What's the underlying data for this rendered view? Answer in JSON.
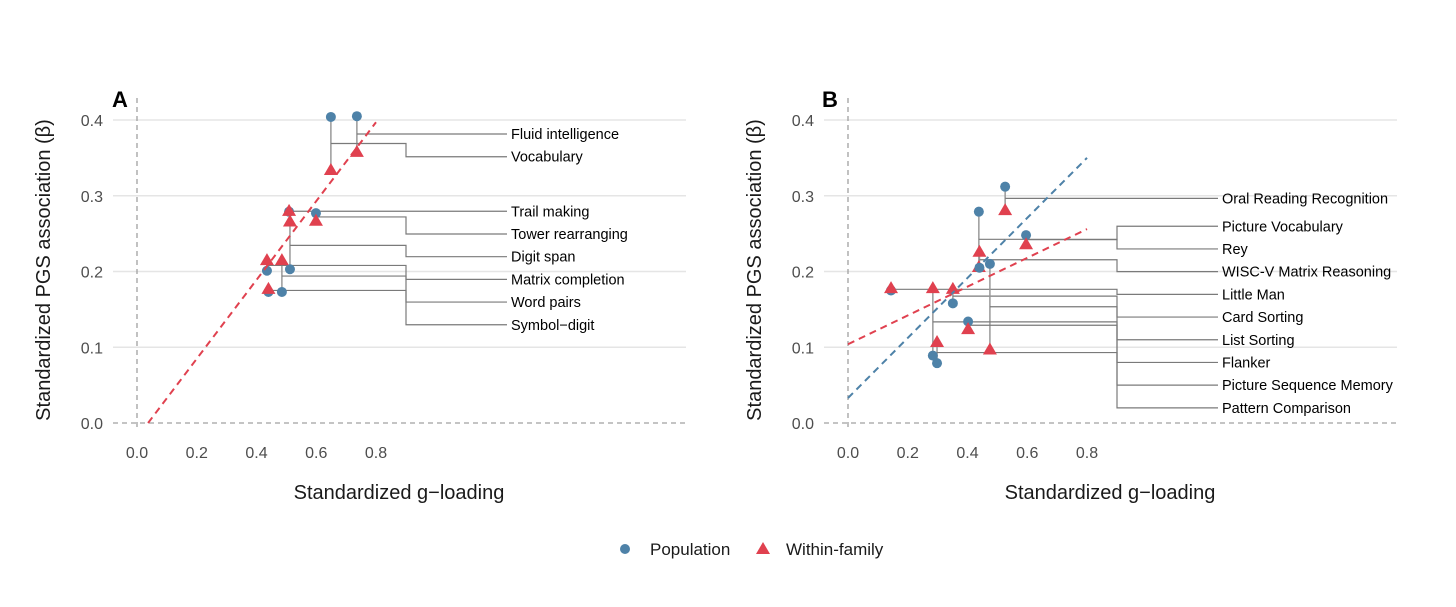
{
  "colors": {
    "population": "#4e82a8",
    "within_family": "#e0414f",
    "grid": "#e5e5e5",
    "connector": "#7a7a7a",
    "zero": "#a0a0a0"
  },
  "legend": {
    "items": [
      {
        "label": "Population",
        "shape": "circle"
      },
      {
        "label": "Within-family",
        "shape": "triangle"
      }
    ],
    "placement": "bottom"
  },
  "chart_data": [
    {
      "type": "scatter",
      "tag": "A",
      "xlabel": "Standardized g−loading",
      "ylabel": "Standardized PGS association (β)",
      "xticks": [
        0.0,
        0.2,
        0.4,
        0.6,
        0.8
      ],
      "xtick_labels": [
        "0.0",
        "0.2",
        "0.4",
        "0.6",
        "0.8"
      ],
      "yticks": [
        0.0,
        0.1,
        0.2,
        0.3,
        0.4
      ],
      "ytick_labels": [
        "0.0",
        "0.1",
        "0.2",
        "0.3",
        "0.4"
      ],
      "grid": "horizontal",
      "points": [
        {
          "label": "Fluid intelligence",
          "x": 0.736,
          "population": 0.405,
          "within_family": 0.358
        },
        {
          "label": "Vocabulary",
          "x": 0.649,
          "population": 0.404,
          "within_family": 0.334
        },
        {
          "label": "Trail making",
          "x": 0.509,
          "population": 0.279,
          "within_family": 0.28
        },
        {
          "label": "Tower rearranging",
          "x": 0.599,
          "population": 0.277,
          "within_family": 0.267
        },
        {
          "label": "Digit span",
          "x": 0.512,
          "population": 0.203,
          "within_family": 0.266
        },
        {
          "label": "Matrix completion",
          "x": 0.485,
          "population": 0.173,
          "within_family": 0.215
        },
        {
          "label": "Word pairs",
          "x": 0.435,
          "population": 0.201,
          "within_family": 0.215
        },
        {
          "label": "Symbol−digit",
          "x": 0.44,
          "population": 0.173,
          "within_family": 0.177
        }
      ],
      "fit_lines": [
        {
          "series": "within_family",
          "x": [
            0.037,
            0.8
          ],
          "y": [
            0.0,
            0.397
          ]
        }
      ]
    },
    {
      "type": "scatter",
      "tag": "B",
      "xlabel": "Standardized g−loading",
      "ylabel": "Standardized PGS association (β)",
      "xticks": [
        0.0,
        0.2,
        0.4,
        0.6,
        0.8
      ],
      "xtick_labels": [
        "0.0",
        "0.2",
        "0.4",
        "0.6",
        "0.8"
      ],
      "yticks": [
        0.0,
        0.1,
        0.2,
        0.3,
        0.4
      ],
      "ytick_labels": [
        "0.0",
        "0.1",
        "0.2",
        "0.3",
        "0.4"
      ],
      "grid": "horizontal",
      "points": [
        {
          "label": "Oral Reading Recognition",
          "x": 0.526,
          "population": 0.312,
          "within_family": 0.281
        },
        {
          "label": "Picture Vocabulary",
          "x": 0.596,
          "population": 0.248,
          "within_family": 0.236
        },
        {
          "label": "Rey",
          "x": 0.438,
          "population": 0.279,
          "within_family": 0.206
        },
        {
          "label": "WISC-V Matrix Reasoning",
          "x": 0.44,
          "population": 0.205,
          "within_family": 0.226
        },
        {
          "label": "Little Man",
          "x": 0.144,
          "population": 0.175,
          "within_family": 0.178
        },
        {
          "label": "Card Sorting",
          "x": 0.351,
          "population": 0.158,
          "within_family": 0.177
        },
        {
          "label": "List Sorting",
          "x": 0.475,
          "population": 0.21,
          "within_family": 0.097
        },
        {
          "label": "Flanker",
          "x": 0.284,
          "population": 0.089,
          "within_family": 0.178
        },
        {
          "label": "Picture Sequence Memory",
          "x": 0.402,
          "population": 0.134,
          "within_family": 0.124
        },
        {
          "label": "Pattern Comparison",
          "x": 0.298,
          "population": 0.079,
          "within_family": 0.107
        }
      ],
      "fit_lines": [
        {
          "series": "population",
          "x": [
            0.0,
            0.8
          ],
          "y": [
            0.033,
            0.35
          ]
        },
        {
          "series": "within_family",
          "x": [
            0.0,
            0.8
          ],
          "y": [
            0.104,
            0.256
          ]
        }
      ]
    }
  ]
}
